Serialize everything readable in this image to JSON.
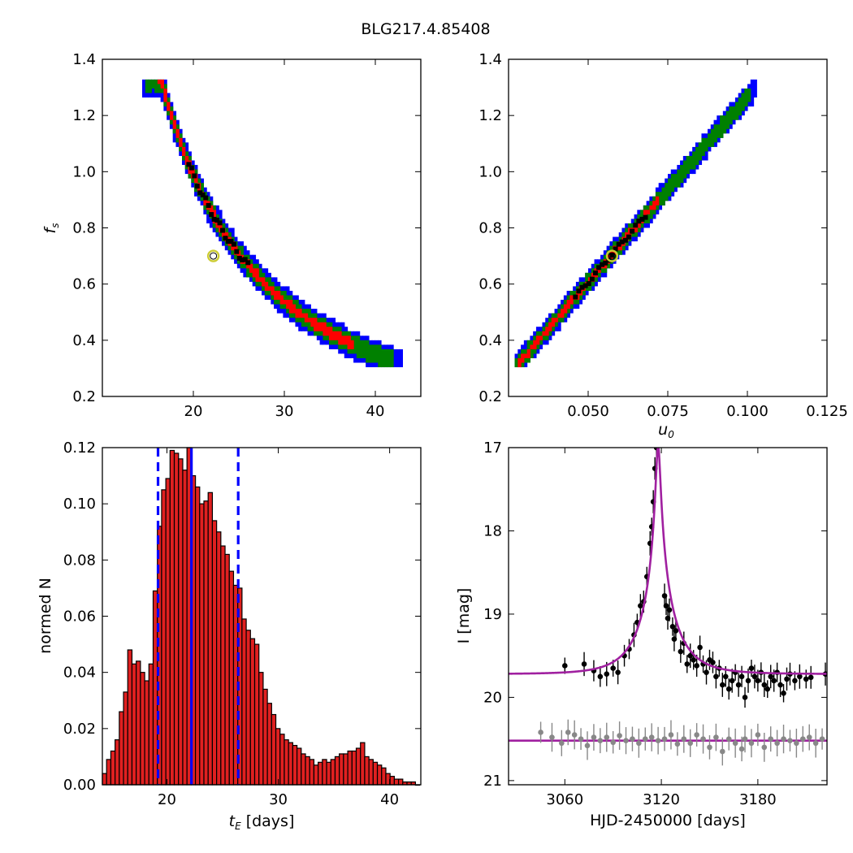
{
  "figure_title": "BLG217.4.85408",
  "colors": {
    "sigma3": "#0000ff",
    "sigma2": "#008000",
    "sigma1": "#ff0000",
    "best_chain": "#000000",
    "best_fit_marker": "#cccc33",
    "hist_bar": "#e02020",
    "hist_lines": "#0000ff",
    "model_curve": "#a020a0",
    "data_points": "#000000",
    "baseline_points": "#888888"
  },
  "chart_data": [
    {
      "id": "fs_vs_tE",
      "type": "heatmap",
      "title": "",
      "xlabel": "",
      "ylabel": "f_s",
      "xlim": [
        10,
        45
      ],
      "ylim": [
        0.2,
        1.4
      ],
      "xticks": [
        20,
        30,
        40
      ],
      "xtick_labels": [
        "20",
        "30",
        "40"
      ],
      "yticks": [
        0.2,
        0.4,
        0.6,
        0.8,
        1.0,
        1.2,
        1.4
      ],
      "ytick_labels": [
        "0.2",
        "0.4",
        "0.6",
        "0.8",
        "1.0",
        "1.2",
        "1.4"
      ],
      "regions": [
        {
          "level": "3-sigma",
          "color": "#0000ff",
          "x_min": 14.5,
          "x_max": 43.0,
          "fs_min": 0.31,
          "fs_max": 1.32
        },
        {
          "level": "2-sigma",
          "color": "#008000",
          "x_min": 14.8,
          "x_max": 42.0
        },
        {
          "level": "1-sigma",
          "color": "#ff0000",
          "x_min": 16.0,
          "x_max": 37.5
        }
      ],
      "best_chain_x_range": [
        19.5,
        26.0
      ],
      "best_fit": {
        "x": 22.2,
        "y": 0.7
      }
    },
    {
      "id": "fs_vs_u0",
      "type": "heatmap",
      "title": "",
      "xlabel": "u_0",
      "ylabel": "",
      "xlim": [
        0.025,
        0.125
      ],
      "ylim": [
        0.2,
        1.4
      ],
      "xticks": [
        0.05,
        0.075,
        0.1,
        0.125
      ],
      "xtick_labels": [
        "0.050",
        "0.075",
        "0.100",
        "0.125"
      ],
      "yticks": [
        0.2,
        0.4,
        0.6,
        0.8,
        1.0,
        1.2,
        1.4
      ],
      "ytick_labels": [
        "0.2",
        "0.4",
        "0.6",
        "0.8",
        "1.0",
        "1.2",
        "1.4"
      ],
      "regions": [
        {
          "level": "3-sigma",
          "color": "#0000ff",
          "x_min": 0.0265,
          "x_max": 0.1025,
          "fs_min": 0.31,
          "fs_max": 1.32
        },
        {
          "level": "2-sigma",
          "color": "#008000",
          "x_min": 0.0265,
          "x_max": 0.101
        },
        {
          "level": "1-sigma",
          "color": "#ff0000",
          "x_min": 0.0275,
          "x_max": 0.072
        }
      ],
      "best_chain_x_range": [
        0.046,
        0.068
      ],
      "best_fit": {
        "x": 0.0575,
        "y": 0.7
      }
    },
    {
      "id": "tE_histogram",
      "type": "bar",
      "title": "",
      "xlabel": "t_E  [days]",
      "ylabel": "normed N",
      "xlim": [
        14.2,
        42.8
      ],
      "ylim": [
        0,
        0.12
      ],
      "xticks": [
        20,
        30,
        40
      ],
      "xtick_labels": [
        "20",
        "30",
        "40"
      ],
      "yticks": [
        0,
        0.02,
        0.04,
        0.06,
        0.08,
        0.1,
        0.12
      ],
      "ytick_labels": [
        "0.00",
        "0.02",
        "0.04",
        "0.06",
        "0.08",
        "0.10",
        "0.12"
      ],
      "bin_start": 14.2,
      "bin_width": 0.38,
      "values": [
        0.004,
        0.009,
        0.012,
        0.016,
        0.026,
        0.033,
        0.048,
        0.043,
        0.044,
        0.04,
        0.037,
        0.043,
        0.069,
        0.092,
        0.105,
        0.109,
        0.119,
        0.118,
        0.116,
        0.112,
        0.12,
        0.11,
        0.106,
        0.1,
        0.101,
        0.104,
        0.094,
        0.09,
        0.085,
        0.082,
        0.076,
        0.071,
        0.07,
        0.059,
        0.055,
        0.052,
        0.05,
        0.04,
        0.034,
        0.029,
        0.025,
        0.02,
        0.018,
        0.016,
        0.015,
        0.014,
        0.013,
        0.011,
        0.01,
        0.009,
        0.007,
        0.008,
        0.009,
        0.008,
        0.009,
        0.01,
        0.011,
        0.011,
        0.012,
        0.012,
        0.013,
        0.015,
        0.01,
        0.009,
        0.008,
        0.007,
        0.006,
        0.004,
        0.003,
        0.002,
        0.002,
        0.001,
        0.001,
        0.001,
        0.0
      ],
      "vlines": [
        {
          "x": 22.2,
          "style": "solid"
        },
        {
          "x": 19.2,
          "style": "dashed"
        },
        {
          "x": 26.4,
          "style": "dashed"
        }
      ]
    },
    {
      "id": "light_curve",
      "type": "scatter",
      "title": "",
      "xlabel": "HJD-2450000 [days]",
      "ylabel": "I [mag]",
      "xlim": [
        3025,
        3223
      ],
      "ylim": [
        21.05,
        17.0
      ],
      "xticks": [
        3060,
        3120,
        3180
      ],
      "xtick_labels": [
        "3060",
        "3120",
        "3180"
      ],
      "yticks": [
        17,
        18,
        19,
        20,
        21
      ],
      "ytick_labels": [
        "17",
        "18",
        "19",
        "20",
        "21"
      ],
      "model": {
        "t0": 3118,
        "tE": 22.2,
        "u0": 0.0575,
        "fs": 0.7,
        "baseline": 19.72
      },
      "baseline_level": 20.52,
      "series": [
        {
          "color": "#000000",
          "points": [
            [
              3060,
              19.62
            ],
            [
              3072,
              19.6
            ],
            [
              3078,
              19.68
            ],
            [
              3082,
              19.75
            ],
            [
              3086,
              19.72
            ],
            [
              3090,
              19.65
            ],
            [
              3093,
              19.7
            ],
            [
              3097,
              19.5
            ],
            [
              3100,
              19.42
            ],
            [
              3103,
              19.25
            ],
            [
              3105,
              19.1
            ],
            [
              3107,
              18.9
            ],
            [
              3109,
              18.85
            ],
            [
              3111,
              18.55
            ],
            [
              3113,
              18.15
            ],
            [
              3114,
              17.95
            ],
            [
              3115,
              17.65
            ],
            [
              3116,
              17.25
            ],
            [
              3117,
              17.0
            ],
            [
              3122,
              18.78
            ],
            [
              3123,
              18.9
            ],
            [
              3124,
              19.05
            ],
            [
              3125,
              18.95
            ],
            [
              3127,
              19.15
            ],
            [
              3128,
              19.3
            ],
            [
              3129,
              19.2
            ],
            [
              3132,
              19.45
            ],
            [
              3134,
              19.35
            ],
            [
              3136,
              19.6
            ],
            [
              3138,
              19.5
            ],
            [
              3140,
              19.55
            ],
            [
              3142,
              19.62
            ],
            [
              3144,
              19.4
            ],
            [
              3146,
              19.6
            ],
            [
              3148,
              19.7
            ],
            [
              3150,
              19.55
            ],
            [
              3152,
              19.58
            ],
            [
              3154,
              19.75
            ],
            [
              3156,
              19.65
            ],
            [
              3158,
              19.85
            ],
            [
              3160,
              19.75
            ],
            [
              3162,
              19.9
            ],
            [
              3164,
              19.8
            ],
            [
              3166,
              19.7
            ],
            [
              3168,
              19.85
            ],
            [
              3170,
              19.75
            ],
            [
              3172,
              20.0
            ],
            [
              3174,
              19.8
            ],
            [
              3176,
              19.65
            ],
            [
              3178,
              19.75
            ],
            [
              3180,
              19.8
            ],
            [
              3182,
              19.7
            ],
            [
              3184,
              19.85
            ],
            [
              3186,
              19.9
            ],
            [
              3188,
              19.75
            ],
            [
              3190,
              19.8
            ],
            [
              3192,
              19.7
            ],
            [
              3194,
              19.85
            ],
            [
              3196,
              19.95
            ],
            [
              3198,
              19.78
            ],
            [
              3200,
              19.72
            ],
            [
              3203,
              19.8
            ],
            [
              3206,
              19.75
            ],
            [
              3210,
              19.78
            ],
            [
              3213,
              19.76
            ],
            [
              3222,
              19.72
            ]
          ]
        },
        {
          "color": "#888888",
          "points": [
            [
              3045,
              20.42
            ],
            [
              3052,
              20.48
            ],
            [
              3058,
              20.55
            ],
            [
              3062,
              20.42
            ],
            [
              3066,
              20.45
            ],
            [
              3070,
              20.5
            ],
            [
              3074,
              20.58
            ],
            [
              3078,
              20.48
            ],
            [
              3082,
              20.52
            ],
            [
              3086,
              20.48
            ],
            [
              3090,
              20.54
            ],
            [
              3094,
              20.46
            ],
            [
              3098,
              20.52
            ],
            [
              3102,
              20.5
            ],
            [
              3106,
              20.55
            ],
            [
              3110,
              20.5
            ],
            [
              3114,
              20.48
            ],
            [
              3118,
              20.52
            ],
            [
              3122,
              20.5
            ],
            [
              3126,
              20.45
            ],
            [
              3130,
              20.56
            ],
            [
              3134,
              20.5
            ],
            [
              3138,
              20.55
            ],
            [
              3142,
              20.45
            ],
            [
              3146,
              20.5
            ],
            [
              3150,
              20.6
            ],
            [
              3154,
              20.48
            ],
            [
              3158,
              20.65
            ],
            [
              3162,
              20.5
            ],
            [
              3166,
              20.55
            ],
            [
              3170,
              20.62
            ],
            [
              3172,
              20.5
            ],
            [
              3176,
              20.55
            ],
            [
              3180,
              20.45
            ],
            [
              3184,
              20.6
            ],
            [
              3188,
              20.5
            ],
            [
              3192,
              20.55
            ],
            [
              3196,
              20.5
            ],
            [
              3200,
              20.52
            ],
            [
              3204,
              20.55
            ],
            [
              3208,
              20.5
            ],
            [
              3212,
              20.48
            ],
            [
              3216,
              20.55
            ],
            [
              3220,
              20.5
            ]
          ]
        }
      ]
    }
  ]
}
